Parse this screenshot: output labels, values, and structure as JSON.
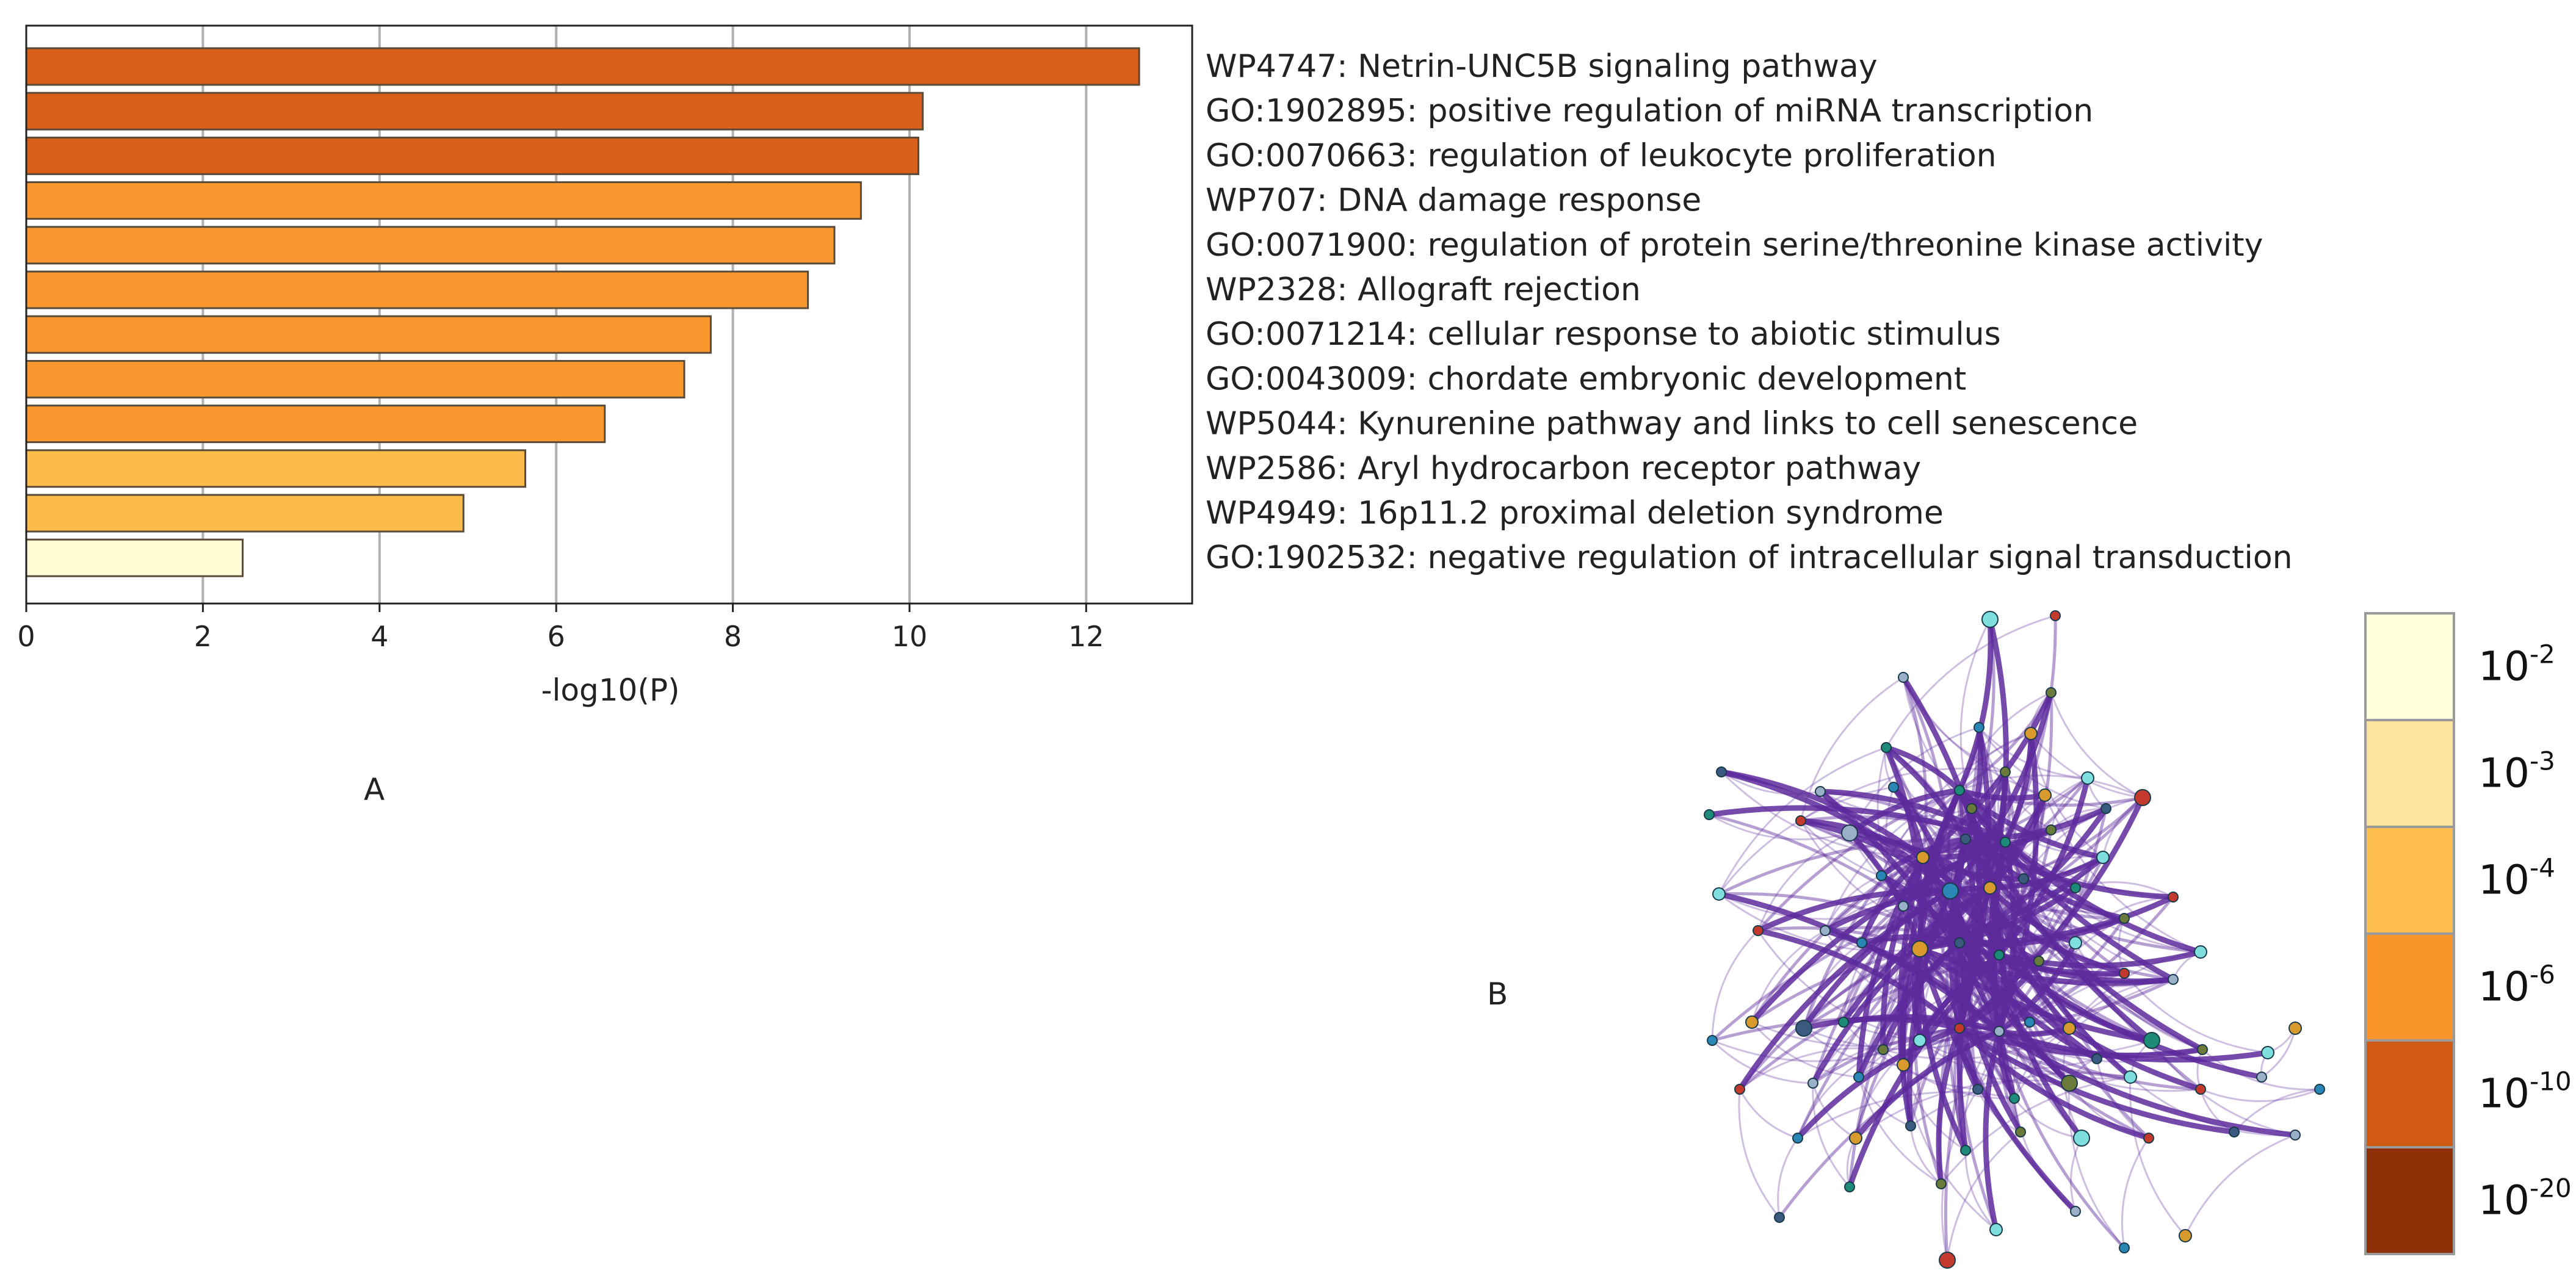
{
  "chart_data": [
    {
      "type": "bar",
      "orientation": "horizontal",
      "xlabel": "-log10(P)",
      "xlim": [
        0,
        13.2
      ],
      "xticks": [
        0,
        2,
        4,
        6,
        8,
        10,
        12
      ],
      "grid": "vertical",
      "categories": [
        "WP4747: Netrin-UNC5B signaling pathway",
        "GO:1902895: positive regulation of miRNA transcription",
        "GO:0070663: regulation of leukocyte proliferation",
        "WP707: DNA damage response",
        "GO:0071900: regulation of protein serine/threonine kinase activity",
        "WP2328: Allograft rejection",
        "GO:0071214: cellular response to abiotic stimulus",
        "GO:0043009: chordate embryonic development",
        "WP5044: Kynurenine pathway and links to cell senescence",
        "WP2586: Aryl hydrocarbon receptor pathway",
        "WP4949: 16p11.2 proximal deletion syndrome",
        "GO:1902532: negative regulation of intracellular signal transduction"
      ],
      "values": [
        12.6,
        10.15,
        10.1,
        9.45,
        9.15,
        8.85,
        7.75,
        7.45,
        6.55,
        5.65,
        4.95,
        2.45
      ],
      "bar_colors": [
        "#d8601a",
        "#d8601a",
        "#d8601a",
        "#f9982f",
        "#f9982f",
        "#f9982f",
        "#f9982f",
        "#f9982f",
        "#f9982f",
        "#fbbc4c",
        "#fbbc4c",
        "#fefbd5"
      ]
    },
    {
      "type": "color_scale",
      "labels": [
        {
          "base": "10",
          "exp": "-2"
        },
        {
          "base": "10",
          "exp": "-3"
        },
        {
          "base": "10",
          "exp": "-4"
        },
        {
          "base": "10",
          "exp": "-6"
        },
        {
          "base": "10",
          "exp": "-10"
        },
        {
          "base": "10",
          "exp": "-20"
        }
      ],
      "colors": [
        "#ffffdc",
        "#fde49a",
        "#fbbd4e",
        "#f9942a",
        "#d15a12",
        "#8f2f08"
      ]
    }
  ],
  "panels": {
    "a": "A",
    "b": "B"
  },
  "network": {
    "edge_color": "#5d2a9c",
    "node_colors": [
      "#7fdede",
      "#2a86b4",
      "#1e8a78",
      "#c33a2c",
      "#d89a2c",
      "#6a7a3a",
      "#9ab0c8",
      "#3a5a80"
    ]
  }
}
